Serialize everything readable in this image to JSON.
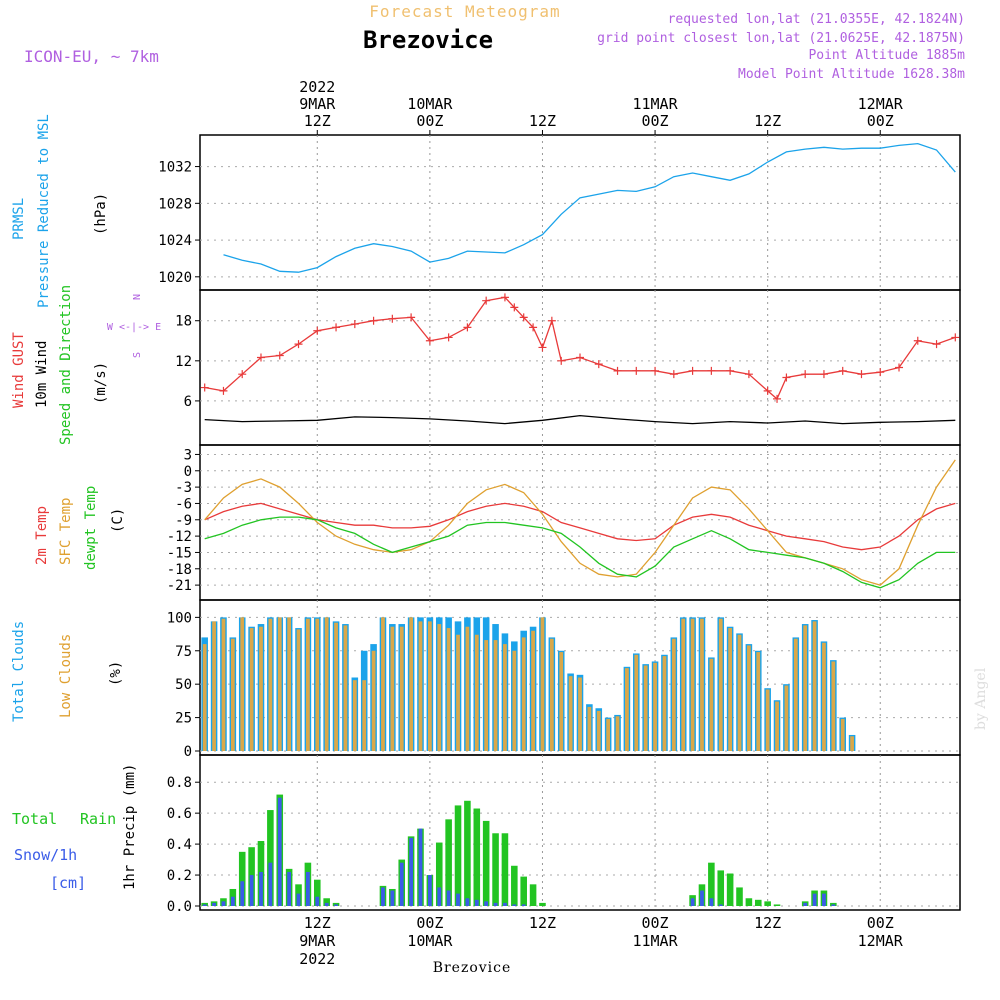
{
  "header": {
    "product_title": "Forecast Meteogram",
    "location": "Brezovice",
    "model": "ICON-EU, ~ 7km",
    "requested": "requested lon,lat (21.0355E, 42.1824N)",
    "grid_point": "grid point closest lon,lat (21.0625E, 42.1875N)",
    "point_altitude": "Point Altitude 1885m",
    "model_altitude": "Model Point Altitude 1628.38m",
    "footer": "Brezovice",
    "watermark": "by Angel"
  },
  "colors": {
    "pressure": "#1ba3ea",
    "gust": "#e83a3a",
    "wind": "#000000",
    "temp2m": "#e83a3a",
    "sfc": "#dfa030",
    "dewpt": "#22c422",
    "total_cloud": "#1ba3ea",
    "low_cloud": "#d9a84a",
    "rain": "#22c422",
    "snow": "#3a5ce8",
    "header": "#b060e0",
    "title_orange": "#f0c070"
  },
  "time_axis": {
    "top": [
      {
        "hour": 12,
        "l1": "2022",
        "l2": "9MAR",
        "l3": "12Z"
      },
      {
        "hour": 24,
        "l1": "",
        "l2": "10MAR",
        "l3": "00Z"
      },
      {
        "hour": 36,
        "l1": "",
        "l2": "",
        "l3": "12Z"
      },
      {
        "hour": 48,
        "l1": "",
        "l2": "11MAR",
        "l3": "00Z"
      },
      {
        "hour": 60,
        "l1": "",
        "l2": "",
        "l3": "12Z"
      },
      {
        "hour": 72,
        "l1": "",
        "l2": "12MAR",
        "l3": "00Z"
      }
    ],
    "bottom": [
      {
        "hour": 12,
        "l1": "12Z",
        "l2": "9MAR",
        "l3": "2022"
      },
      {
        "hour": 24,
        "l1": "00Z",
        "l2": "10MAR",
        "l3": ""
      },
      {
        "hour": 36,
        "l1": "12Z",
        "l2": "",
        "l3": ""
      },
      {
        "hour": 48,
        "l1": "00Z",
        "l2": "11MAR",
        "l3": ""
      },
      {
        "hour": 60,
        "l1": "12Z",
        "l2": "",
        "l3": ""
      },
      {
        "hour": 72,
        "l1": "00Z",
        "l2": "12MAR",
        "l3": ""
      }
    ]
  },
  "panel_labels": {
    "pressure": {
      "l1": "PRMSL",
      "l2": "Pressure Reduced to MSL",
      "unit": "(hPa)"
    },
    "wind": {
      "l1": "Wind GUST",
      "l2": "10m Wind",
      "l3": "Speed and Direction",
      "unit": "(m/s)",
      "compass_n": "N",
      "compass_ew": "W <-|-> E",
      "compass_s": "S"
    },
    "temp": {
      "l1": "2m Temp",
      "l2": "SFC Temp",
      "l3": "dewpt Temp",
      "unit": "(C)"
    },
    "clouds": {
      "l1": "Total Clouds",
      "l2": "Low Clouds",
      "unit": "(%)"
    },
    "precip": {
      "l1": "Total",
      "l1b": "Rain",
      "l2": "Snow/1h",
      "l3": "[cm]",
      "unit": "1hr Precip (mm)"
    }
  },
  "chart_data": [
    {
      "type": "line",
      "name": "pressure",
      "ylim": [
        1019,
        1035
      ],
      "yticks": [
        1020,
        1024,
        1028,
        1032
      ],
      "x": [
        2,
        4,
        6,
        8,
        10,
        12,
        14,
        16,
        18,
        20,
        22,
        24,
        26,
        28,
        30,
        32,
        34,
        36,
        38,
        40,
        42,
        44,
        46,
        48,
        50,
        52,
        54,
        56,
        58,
        60,
        62,
        64,
        66,
        68,
        70,
        72,
        74,
        76,
        78,
        80
      ],
      "values": [
        1022.4,
        1021.8,
        1021.4,
        1020.6,
        1020.5,
        1021.0,
        1022.2,
        1023.1,
        1023.6,
        1023.3,
        1022.8,
        1021.6,
        1022.0,
        1022.8,
        1022.7,
        1022.6,
        1023.5,
        1024.6,
        1026.8,
        1028.6,
        1029.0,
        1029.4,
        1029.3,
        1029.8,
        1030.9,
        1031.3,
        1030.9,
        1030.5,
        1031.2,
        1032.5,
        1033.6,
        1033.9,
        1034.1,
        1033.9,
        1034.0,
        1034.0,
        1034.3,
        1034.5,
        1033.8,
        1031.4
      ]
    },
    {
      "type": "line",
      "name": "wind",
      "ylim": [
        0,
        22
      ],
      "yticks": [
        6,
        12,
        18
      ],
      "gust": {
        "x": [
          0,
          2,
          4,
          6,
          8,
          10,
          12,
          14,
          16,
          18,
          20,
          22,
          24,
          26,
          28,
          30,
          32,
          33,
          34,
          35,
          36,
          37,
          38,
          40,
          42,
          44,
          46,
          48,
          50,
          52,
          54,
          56,
          58,
          60,
          61,
          62,
          64,
          66,
          68,
          70,
          72,
          74,
          76,
          78,
          80
        ],
        "values": [
          8,
          7.5,
          10,
          12.5,
          12.8,
          14.5,
          16.5,
          17,
          17.5,
          18,
          18.3,
          18.5,
          15,
          15.5,
          17,
          21,
          21.5,
          20,
          18.5,
          17,
          14,
          18,
          12,
          12.5,
          11.5,
          10.5,
          10.5,
          10.5,
          10,
          10.5,
          10.5,
          10.5,
          10,
          7.5,
          6.3,
          9.5,
          10,
          10,
          10.5,
          10,
          10.3,
          11,
          15,
          14.5,
          15.5
        ]
      },
      "wind10m": {
        "x": [
          0,
          4,
          8,
          12,
          16,
          20,
          24,
          28,
          32,
          36,
          40,
          44,
          48,
          52,
          56,
          60,
          64,
          68,
          72,
          76,
          80
        ],
        "values": [
          3.2,
          2.9,
          3.0,
          3.1,
          3.6,
          3.5,
          3.3,
          3.0,
          2.6,
          3.1,
          3.8,
          3.3,
          2.9,
          2.6,
          2.9,
          2.7,
          3.0,
          2.6,
          2.8,
          2.9,
          3.1
        ]
      }
    },
    {
      "type": "line",
      "name": "temperature",
      "ylim": [
        -23,
        4
      ],
      "yticks": [
        3,
        0,
        -3,
        -6,
        -9,
        -12,
        -15,
        -18,
        -21
      ],
      "x": [
        0,
        2,
        4,
        6,
        8,
        10,
        12,
        14,
        16,
        18,
        20,
        22,
        24,
        26,
        28,
        30,
        32,
        34,
        36,
        38,
        40,
        42,
        44,
        46,
        48,
        50,
        52,
        54,
        56,
        58,
        60,
        62,
        64,
        66,
        68,
        70,
        72,
        74,
        76,
        78,
        80
      ],
      "temp2m": [
        -9,
        -7.5,
        -6.5,
        -6,
        -7,
        -8,
        -9,
        -9.5,
        -10,
        -10,
        -10.5,
        -10.5,
        -10.2,
        -9,
        -7.5,
        -6.5,
        -6,
        -6.5,
        -7.5,
        -9.5,
        -10.5,
        -11.5,
        -12.5,
        -12.8,
        -12.5,
        -10,
        -8.5,
        -8,
        -8.5,
        -10,
        -11,
        -12,
        -12.5,
        -13,
        -14,
        -14.5,
        -14,
        -12,
        -9,
        -7,
        -6
      ],
      "sfc": [
        -9,
        -5,
        -2.5,
        -1.5,
        -3,
        -6,
        -9.5,
        -12,
        -13.5,
        -14.5,
        -15,
        -14.5,
        -13,
        -10,
        -6,
        -3.5,
        -2.5,
        -4,
        -8,
        -13,
        -17,
        -19,
        -19.5,
        -19,
        -15,
        -10,
        -5,
        -3,
        -3.5,
        -7,
        -11,
        -15,
        -16,
        -17,
        -18,
        -20,
        -21,
        -18,
        -10,
        -3,
        2
      ],
      "dewpt": [
        -12.5,
        -11.5,
        -10,
        -9,
        -8.5,
        -8.5,
        -9,
        -10.5,
        -11.5,
        -13.5,
        -15,
        -14,
        -13,
        -12,
        -10,
        -9.5,
        -9.5,
        -10,
        -10.5,
        -11.5,
        -14,
        -17,
        -19,
        -19.5,
        -17.5,
        -14,
        -12.5,
        -11,
        -12.5,
        -14.5,
        -15,
        -15.5,
        -16,
        -17,
        -18.5,
        -20.5,
        -21.5,
        -20,
        -17,
        -15,
        -15
      ]
    },
    {
      "type": "bar",
      "name": "clouds",
      "ylim": [
        0,
        110
      ],
      "yticks": [
        0,
        25,
        50,
        75,
        100
      ],
      "x_start": 0,
      "x_step": 1,
      "total": [
        85,
        97,
        100,
        85,
        100,
        93,
        95,
        100,
        100,
        100,
        92,
        100,
        100,
        100,
        97,
        95,
        55,
        75,
        80,
        100,
        95,
        95,
        100,
        100,
        100,
        100,
        100,
        97,
        100,
        100,
        100,
        95,
        88,
        82,
        90,
        93,
        100,
        85,
        75,
        58,
        57,
        35,
        32,
        25,
        27,
        63,
        73,
        65,
        67,
        72,
        85,
        100,
        100,
        100,
        70,
        100,
        93,
        88,
        80,
        75,
        47,
        38,
        50,
        85,
        95,
        98,
        82,
        68,
        25,
        12,
        0,
        0,
        0,
        0,
        0,
        0,
        0,
        0,
        0,
        0,
        0
      ],
      "low": [
        80,
        97,
        99,
        84,
        100,
        92,
        93,
        99,
        100,
        100,
        91,
        99,
        99,
        100,
        96,
        94,
        53,
        53,
        75,
        100,
        93,
        93,
        100,
        97,
        97,
        95,
        92,
        87,
        93,
        87,
        83,
        83,
        80,
        75,
        85,
        90,
        100,
        84,
        74,
        56,
        55,
        33,
        30,
        24,
        26,
        62,
        72,
        64,
        66,
        71,
        84,
        99,
        99,
        99,
        69,
        99,
        92,
        87,
        79,
        74,
        46,
        37,
        49,
        84,
        94,
        97,
        81,
        67,
        24,
        11,
        0,
        0,
        0,
        0,
        0,
        0,
        0,
        0,
        0,
        0,
        0
      ]
    },
    {
      "type": "bar",
      "name": "precip",
      "ylim": [
        0,
        0.95
      ],
      "yticks": [
        0,
        0.2,
        0.4,
        0.6,
        0.8
      ],
      "x_start": 0,
      "x_step": 1,
      "rain": [
        0.02,
        0.03,
        0.05,
        0.11,
        0.35,
        0.38,
        0.42,
        0.62,
        0.72,
        0.24,
        0.14,
        0.28,
        0.17,
        0.05,
        0.02,
        0,
        0,
        0,
        0,
        0.13,
        0.11,
        0.3,
        0.45,
        0.5,
        0.2,
        0.41,
        0.56,
        0.65,
        0.68,
        0.63,
        0.55,
        0.47,
        0.47,
        0.26,
        0.19,
        0.14,
        0.02,
        0,
        0,
        0,
        0,
        0,
        0,
        0,
        0,
        0,
        0,
        0,
        0,
        0,
        0,
        0,
        0.07,
        0.14,
        0.28,
        0.23,
        0.21,
        0.12,
        0.05,
        0.04,
        0.03,
        0.01,
        0,
        0,
        0.03,
        0.1,
        0.1,
        0.02,
        0,
        0,
        0,
        0,
        0,
        0,
        0,
        0,
        0,
        0,
        0,
        0
      ],
      "snow": [
        0.01,
        0.02,
        0.03,
        0.06,
        0.16,
        0.2,
        0.22,
        0.28,
        0.7,
        0.22,
        0.08,
        0.22,
        0.06,
        0.02,
        0.01,
        0,
        0,
        0,
        0,
        0.12,
        0.1,
        0.28,
        0.44,
        0.5,
        0.2,
        0.12,
        0.1,
        0.08,
        0.05,
        0.04,
        0.03,
        0.02,
        0.02,
        0.01,
        0.01,
        0,
        0,
        0,
        0,
        0,
        0,
        0,
        0,
        0,
        0,
        0,
        0,
        0,
        0,
        0,
        0,
        0,
        0.05,
        0.1,
        0.05,
        0.01,
        0,
        0,
        0,
        0,
        0,
        0,
        0,
        0,
        0.02,
        0.08,
        0.08,
        0.01,
        0,
        0,
        0,
        0,
        0,
        0,
        0,
        0,
        0,
        0,
        0,
        0
      ]
    }
  ]
}
